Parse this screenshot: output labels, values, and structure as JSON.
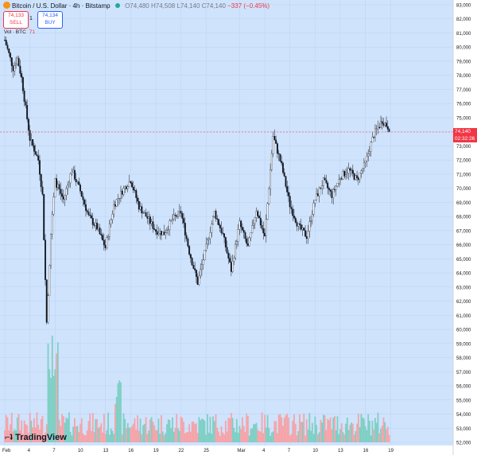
{
  "header": {
    "title": "Bitcoin / U.S. Dollar · 4h · Bitstamp",
    "open": "O74,480",
    "high": "H74,508",
    "low": "L74,140",
    "close": "C74,140",
    "change": "−337 (−0.45%)"
  },
  "trade": {
    "sell_price": "74,133",
    "sell_label": "SELL",
    "spread": "1",
    "buy_price": "74,134",
    "buy_label": "BUY"
  },
  "volume_indicator": {
    "label": "Vol · BTC",
    "value": "71"
  },
  "brand": "TradingView",
  "last_price": {
    "price": "74,140",
    "countdown": "02:32:26"
  },
  "colors": {
    "background": "#cfe3fc",
    "up": "#22ab94",
    "down": "#f23645",
    "wick": "#131722",
    "up_volume": "#7ecfc4",
    "down_volume": "#f5a4a9"
  },
  "chart_data": {
    "type": "candlestick",
    "ylim": [
      52000,
      83000
    ],
    "y_ticks": [
      "83,000",
      "82,000",
      "81,000",
      "80,000",
      "79,000",
      "78,000",
      "77,000",
      "76,000",
      "75,000",
      "74,000",
      "73,000",
      "72,000",
      "71,000",
      "70,000",
      "69,000",
      "68,000",
      "67,000",
      "66,000",
      "65,000",
      "64,000",
      "63,000",
      "62,000",
      "61,000",
      "60,000",
      "59,000",
      "58,000",
      "57,000",
      "56,000",
      "55,000",
      "54,000",
      "53,000",
      "52,000"
    ],
    "x_ticks": [
      "Feb",
      "4",
      "7",
      "10",
      "13",
      "16",
      "19",
      "22",
      "25",
      "Mar",
      "4",
      "7",
      "10",
      "13",
      "16",
      "19"
    ],
    "grid": true,
    "price_path": [
      [
        "Feb 1",
        80500
      ],
      [
        "Feb 2",
        78500
      ],
      [
        "Feb 2.5",
        79200
      ],
      [
        "Feb 3",
        77800
      ],
      [
        "Feb 4",
        73500
      ],
      [
        "Feb 5",
        72000
      ],
      [
        "Feb 5.5",
        69500
      ],
      [
        "Feb 6",
        60500
      ],
      [
        "Feb 6.5",
        66800
      ],
      [
        "Feb 7",
        70500
      ],
      [
        "Feb 8",
        69200
      ],
      [
        "Feb 9",
        71300
      ],
      [
        "Feb 10",
        69800
      ],
      [
        "Feb 11",
        68000
      ],
      [
        "Feb 12",
        67200
      ],
      [
        "Feb 13",
        65800
      ],
      [
        "Feb 14",
        68800
      ],
      [
        "Feb 15",
        69800
      ],
      [
        "Feb 16",
        70600
      ],
      [
        "Feb 17",
        68700
      ],
      [
        "Feb 18",
        67900
      ],
      [
        "Feb 19",
        67000
      ],
      [
        "Feb 20",
        66800
      ],
      [
        "Feb 21",
        67800
      ],
      [
        "Feb 22",
        68300
      ],
      [
        "Feb 23",
        65500
      ],
      [
        "Feb 24",
        63300
      ],
      [
        "Feb 25",
        65800
      ],
      [
        "Feb 26",
        68300
      ],
      [
        "Feb 27",
        66700
      ],
      [
        "Feb 28",
        64200
      ],
      [
        "Mar 1",
        67500
      ],
      [
        "Mar 2",
        65800
      ],
      [
        "Mar 3",
        68500
      ],
      [
        "Mar 4",
        66500
      ],
      [
        "Mar 5",
        73700
      ],
      [
        "Mar 6",
        71600
      ],
      [
        "Mar 7",
        68800
      ],
      [
        "Mar 8",
        67300
      ],
      [
        "Mar 9",
        66600
      ],
      [
        "Mar 10",
        69200
      ],
      [
        "Mar 11",
        70500
      ],
      [
        "Mar 12",
        69500
      ],
      [
        "Mar 13",
        70800
      ],
      [
        "Mar 14",
        71300
      ],
      [
        "Mar 15",
        70600
      ],
      [
        "Mar 16",
        71800
      ],
      [
        "Mar 17",
        73800
      ],
      [
        "Mar 18",
        74800
      ],
      [
        "Mar 19",
        74140
      ]
    ],
    "last_close": 74140,
    "low": 60200,
    "high": 80500
  }
}
